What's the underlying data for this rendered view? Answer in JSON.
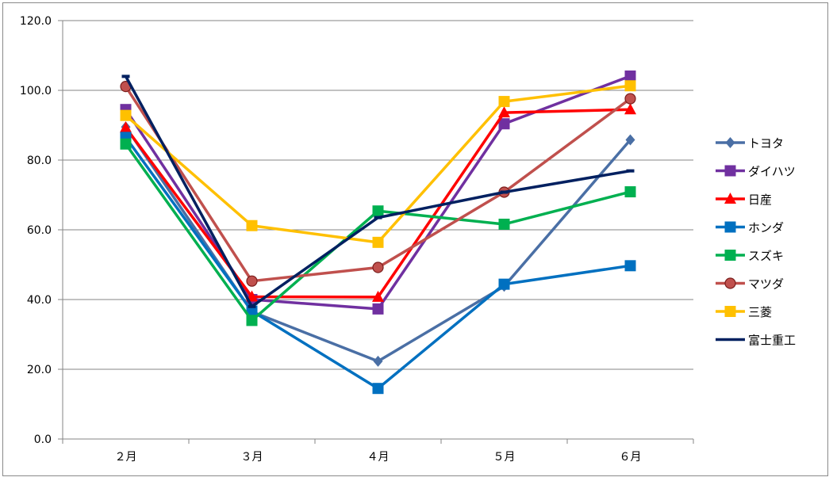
{
  "chart_data": {
    "type": "line",
    "categories": [
      "２月",
      "３月",
      "４月",
      "５月",
      "６月"
    ],
    "ylim": [
      0,
      120
    ],
    "yticks": [
      "0.0",
      "20.0",
      "40.0",
      "60.0",
      "80.0",
      "100.0",
      "120.0"
    ],
    "grid": true,
    "legend_position": "right",
    "series": [
      {
        "name": "トヨタ",
        "color": "#4A6FA5",
        "marker": "diamond",
        "values": [
          89.5,
          36.5,
          22.3,
          43.8,
          85.8
        ]
      },
      {
        "name": "ダイハツ",
        "color": "#7030A0",
        "marker": "square",
        "values": [
          94.5,
          40.0,
          37.3,
          90.4,
          104.1
        ]
      },
      {
        "name": "日産",
        "color": "#FF0000",
        "marker": "triangle",
        "values": [
          89.3,
          40.8,
          40.7,
          93.6,
          94.5
        ]
      },
      {
        "name": "ホンダ",
        "color": "#0070C0",
        "marker": "square",
        "values": [
          86.5,
          36.7,
          14.5,
          44.4,
          49.7
        ]
      },
      {
        "name": "スズキ",
        "color": "#00B050",
        "marker": "square",
        "values": [
          84.6,
          34.0,
          65.4,
          61.6,
          70.9
        ]
      },
      {
        "name": "マツダ",
        "color": "#C0504D",
        "marker": "circle",
        "values": [
          101.1,
          45.3,
          49.2,
          70.8,
          97.6
        ]
      },
      {
        "name": "三菱",
        "color": "#FFC000",
        "marker": "square",
        "values": [
          92.8,
          61.2,
          56.4,
          96.8,
          101.3
        ]
      },
      {
        "name": "富士重工",
        "color": "#002060",
        "marker": "none",
        "values": [
          104.0,
          38.0,
          63.5,
          70.8,
          76.9
        ]
      }
    ]
  }
}
